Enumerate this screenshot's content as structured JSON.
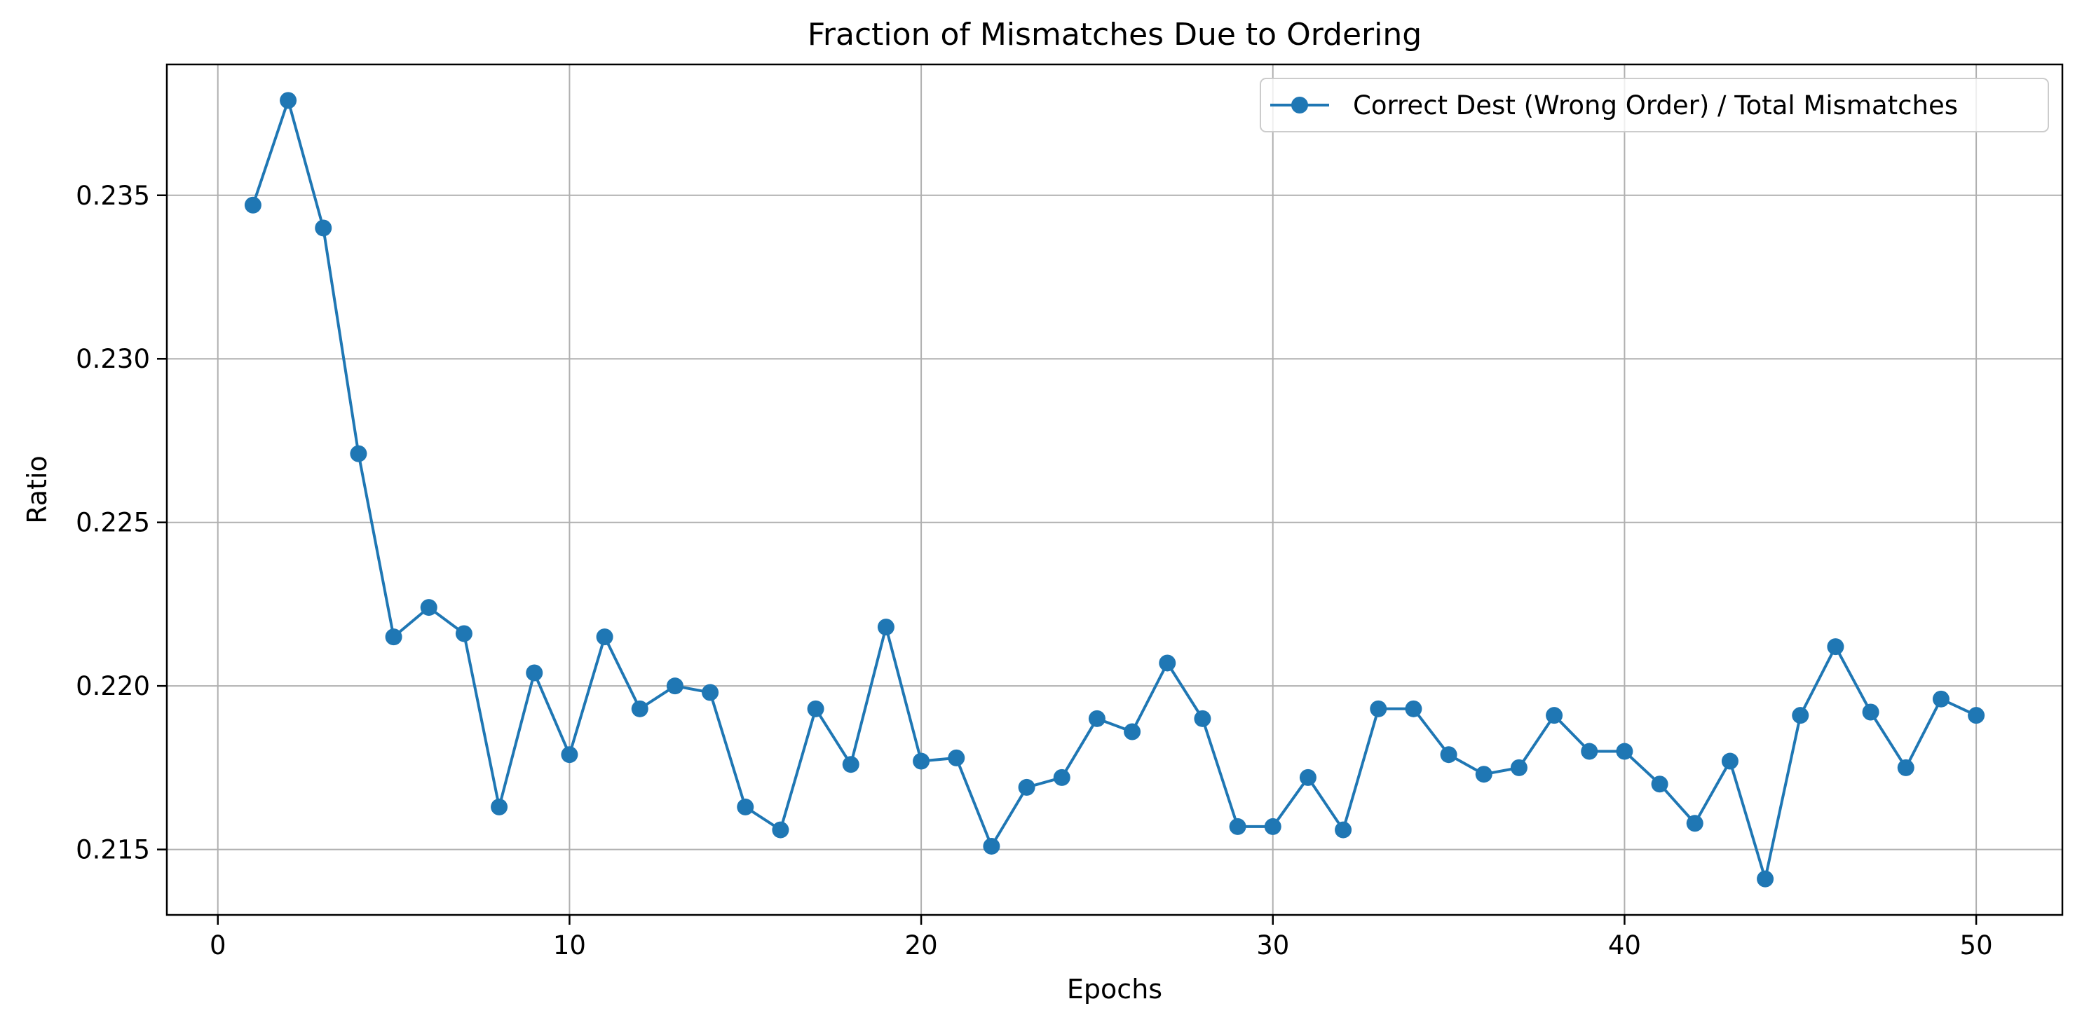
{
  "chart_data": {
    "type": "line",
    "title": "Fraction of Mismatches Due to Ordering",
    "xlabel": "Epochs",
    "ylabel": "Ratio",
    "xlim": [
      -1.45,
      52.45
    ],
    "ylim": [
      0.213,
      0.239
    ],
    "xticks": [
      0,
      10,
      20,
      30,
      40,
      50
    ],
    "yticks": [
      0.215,
      0.22,
      0.225,
      0.23,
      0.235
    ],
    "ytick_labels": [
      "0.215",
      "0.220",
      "0.225",
      "0.230",
      "0.235"
    ],
    "grid": true,
    "legend_position": "top-right",
    "series": [
      {
        "name": "Correct Dest (Wrong Order) / Total Mismatches",
        "color": "#1f77b4",
        "marker": "circle",
        "x": [
          1,
          2,
          3,
          4,
          5,
          6,
          7,
          8,
          9,
          10,
          11,
          12,
          13,
          14,
          15,
          16,
          17,
          18,
          19,
          20,
          21,
          22,
          23,
          24,
          25,
          26,
          27,
          28,
          29,
          30,
          31,
          32,
          33,
          34,
          35,
          36,
          37,
          38,
          39,
          40,
          41,
          42,
          43,
          44,
          45,
          46,
          47,
          48,
          49,
          50
        ],
        "y": [
          0.2347,
          0.2379,
          0.234,
          0.2271,
          0.2215,
          0.2224,
          0.2216,
          0.2163,
          0.2204,
          0.2179,
          0.2215,
          0.2193,
          0.22,
          0.2198,
          0.2163,
          0.2156,
          0.2193,
          0.2176,
          0.2218,
          0.2177,
          0.2178,
          0.2151,
          0.2169,
          0.2172,
          0.219,
          0.2186,
          0.2207,
          0.219,
          0.2157,
          0.2157,
          0.2172,
          0.2156,
          0.2193,
          0.2193,
          0.2179,
          0.2173,
          0.2175,
          0.2191,
          0.218,
          0.218,
          0.217,
          0.2158,
          0.2177,
          0.2141,
          0.2191,
          0.2212,
          0.2192,
          0.2175,
          0.2196,
          0.2191
        ]
      }
    ]
  }
}
